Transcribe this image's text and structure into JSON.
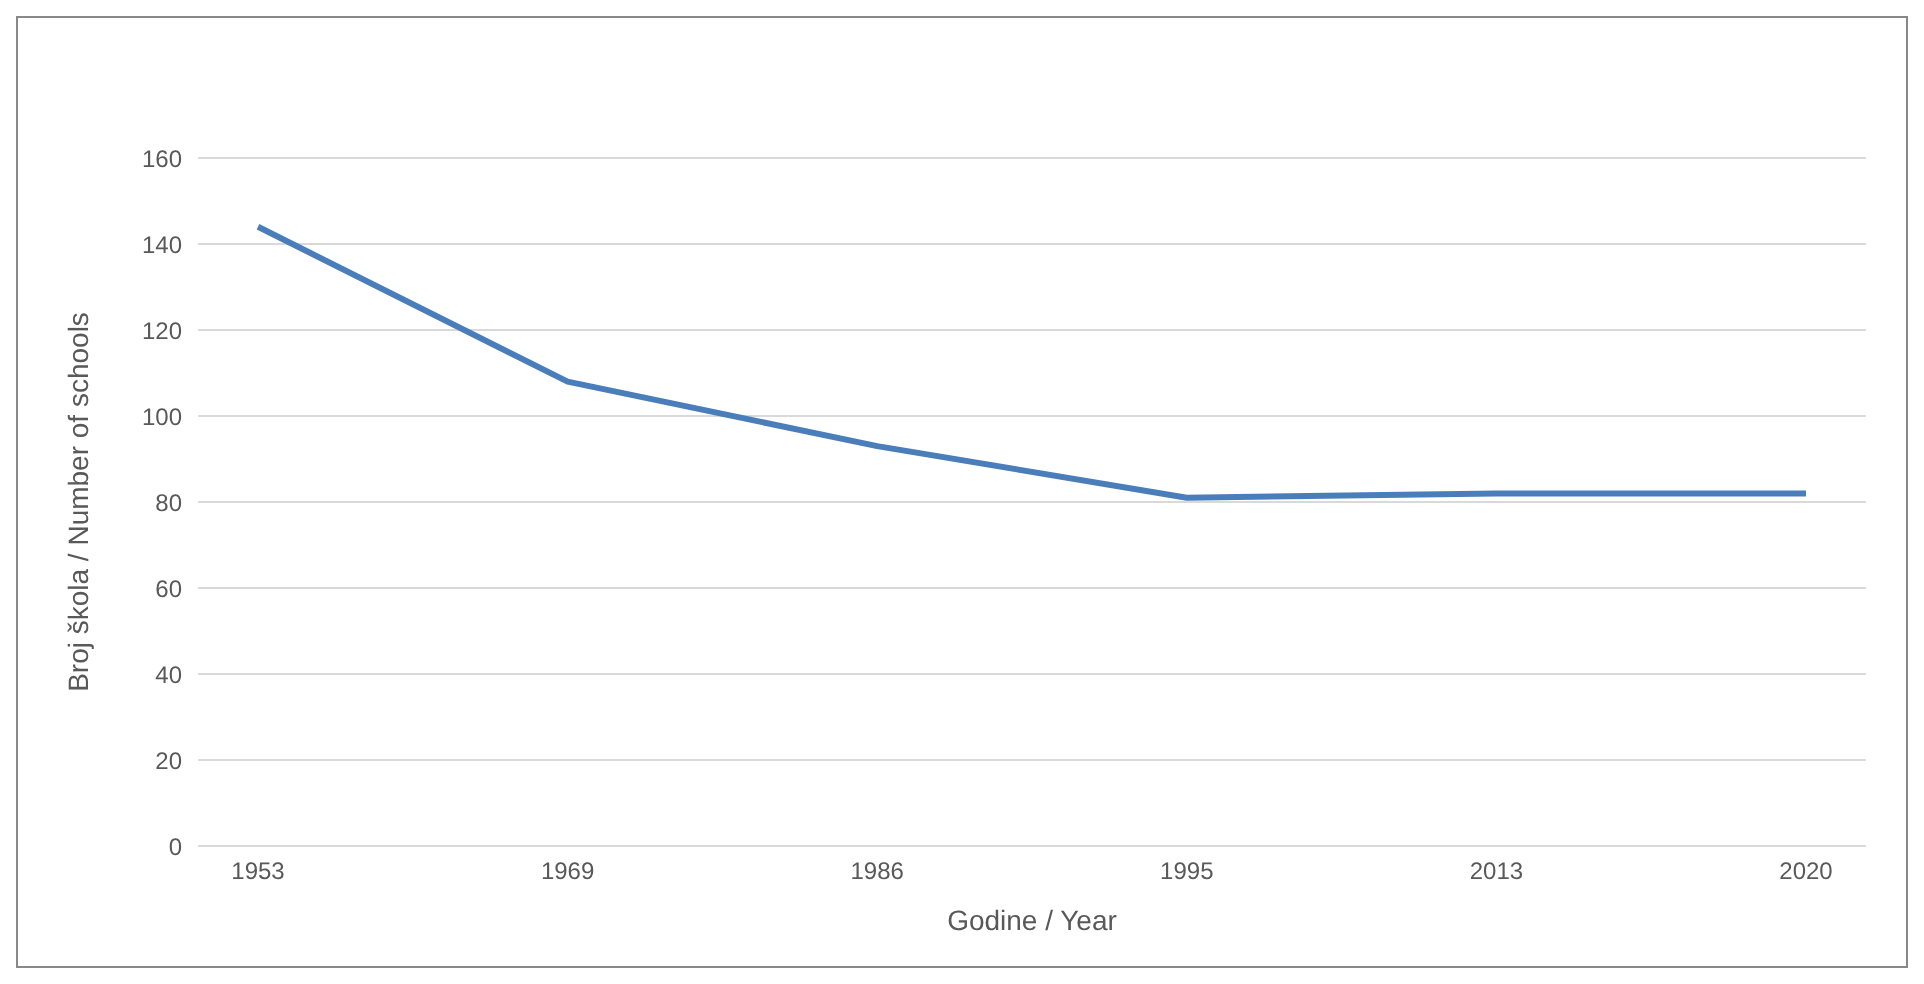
{
  "chart_data": {
    "type": "line",
    "xlabel": "Godine / Year",
    "ylabel": "Broj škola / Number of schools",
    "categories": [
      "1953",
      "1969",
      "1986",
      "1995",
      "2013",
      "2020"
    ],
    "series": [
      {
        "color": "#4a7ebb",
        "values": [
          144,
          108,
          93,
          81,
          82,
          82
        ]
      }
    ],
    "ylim": [
      0,
      160
    ],
    "yticks": [
      0,
      20,
      40,
      60,
      80,
      100,
      120,
      140,
      160
    ],
    "grid": "y",
    "marker": "none",
    "line_style": "solid"
  }
}
